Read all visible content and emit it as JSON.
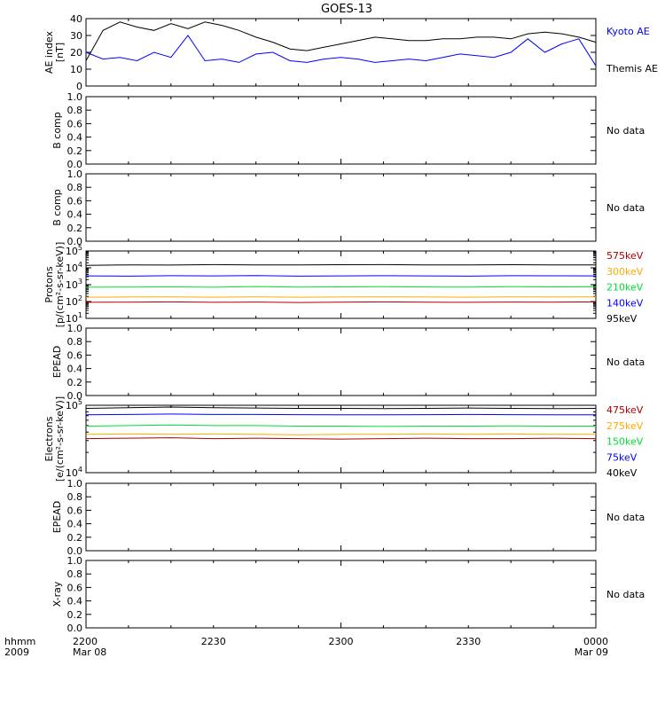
{
  "title": "GOES-13",
  "colors": {
    "black": "#000000",
    "blue": "#0000ff",
    "green": "#00dd33",
    "orange": "#ffaa00",
    "darkred": "#aa0000"
  },
  "time_axis": {
    "left_labels": [
      "hhmm",
      "2009"
    ],
    "ticks": [
      {
        "time": "2200",
        "date": "Mar 08"
      },
      {
        "time": "2230",
        "date": ""
      },
      {
        "time": "2300",
        "date": ""
      },
      {
        "time": "2330",
        "date": ""
      },
      {
        "time": "0000",
        "date": "Mar 09"
      }
    ]
  },
  "no_data_label": "No data",
  "chart_data": [
    {
      "type": "line",
      "ylabel": [
        "AE index",
        "[nT]"
      ],
      "ylim": [
        0,
        40
      ],
      "yticks": [
        "0",
        "10",
        "20",
        "30",
        "40"
      ],
      "x": [
        0,
        2,
        4,
        6,
        8,
        10,
        12,
        14,
        16,
        18,
        20,
        22,
        24,
        26,
        28,
        30,
        32,
        34,
        36,
        38,
        40,
        42,
        44,
        46,
        48,
        50,
        52,
        54,
        56,
        58,
        60
      ],
      "series": [
        {
          "name": "Kyoto AE",
          "color": "#0000ff",
          "values": [
            20,
            16,
            17,
            15,
            20,
            17,
            30,
            15,
            16,
            14,
            19,
            20,
            15,
            14,
            16,
            17,
            16,
            14,
            15,
            16,
            15,
            17,
            19,
            18,
            17,
            20,
            28,
            20,
            25,
            28,
            12
          ]
        },
        {
          "name": "Themis AE",
          "color": "#000000",
          "values": [
            15,
            33,
            38,
            35,
            33,
            37,
            34,
            38,
            36,
            33,
            29,
            26,
            22,
            21,
            23,
            25,
            27,
            29,
            28,
            27,
            27,
            28,
            28,
            29,
            29,
            28,
            31,
            32,
            31,
            29,
            26
          ]
        }
      ]
    },
    {
      "type": "line",
      "ylabel": [
        "B comp"
      ],
      "ylim": [
        0,
        1
      ],
      "yticks": [
        "0.0",
        "0.2",
        "0.4",
        "0.6",
        "0.8",
        "1.0"
      ],
      "no_data": true,
      "series": []
    },
    {
      "type": "line",
      "ylabel": [
        "B comp"
      ],
      "ylim": [
        0,
        1
      ],
      "yticks": [
        "0.0",
        "0.2",
        "0.4",
        "0.6",
        "0.8",
        "1.0"
      ],
      "no_data": true,
      "series": []
    },
    {
      "type": "line",
      "ylabel": [
        "Protons",
        "[p/(cm²-s-sr-keV)]"
      ],
      "log": true,
      "ylim": [
        10,
        100000
      ],
      "log_ticks": [
        {
          "base": "10",
          "exp": "5",
          "value": 100000
        },
        {
          "base": "10",
          "exp": "4",
          "value": 10000
        },
        {
          "base": "10",
          "exp": "3",
          "value": 1000
        },
        {
          "base": "10",
          "exp": "2",
          "value": 100
        },
        {
          "base": "10",
          "exp": "1",
          "value": 10
        }
      ],
      "x": [
        0,
        5,
        10,
        15,
        20,
        25,
        30,
        35,
        40,
        45,
        50,
        55,
        60
      ],
      "series": [
        {
          "name": "575keV",
          "color": "#aa0000",
          "values": [
            90,
            92,
            95,
            90,
            93,
            88,
            92,
            95,
            92,
            90,
            93,
            92,
            95
          ]
        },
        {
          "name": "300keV",
          "color": "#ffaa00",
          "values": [
            180,
            185,
            190,
            182,
            188,
            180,
            185,
            190,
            186,
            182,
            190,
            186,
            188
          ]
        },
        {
          "name": "210keV",
          "color": "#00dd33",
          "values": [
            700,
            720,
            740,
            700,
            780,
            720,
            740,
            760,
            730,
            710,
            760,
            740,
            750
          ]
        },
        {
          "name": "140keV",
          "color": "#0000ff",
          "values": [
            3300,
            3200,
            3400,
            3300,
            3500,
            3200,
            3300,
            3400,
            3300,
            3200,
            3400,
            3350,
            3300
          ]
        },
        {
          "name": "95keV",
          "color": "#000000",
          "values": [
            14000,
            15000,
            14500,
            15500,
            15000,
            14800,
            15200,
            15500,
            15000,
            14700,
            15300,
            15000,
            14800
          ]
        }
      ]
    },
    {
      "type": "line",
      "ylabel": [
        "EPEAD"
      ],
      "ylim": [
        0,
        1
      ],
      "yticks": [
        "0.0",
        "0.2",
        "0.4",
        "0.6",
        "0.8",
        "1.0"
      ],
      "no_data": true,
      "series": []
    },
    {
      "type": "line",
      "ylabel": [
        "Electrons",
        "[e/(cm²-s-sr-keV)]"
      ],
      "log": true,
      "ylim": [
        10000,
        100000
      ],
      "log_ticks": [
        {
          "base": "10",
          "exp": "5",
          "value": 100000
        },
        {
          "base": "10",
          "exp": "4",
          "value": 10000
        }
      ],
      "x": [
        0,
        5,
        10,
        15,
        20,
        25,
        30,
        35,
        40,
        45,
        50,
        55,
        60
      ],
      "series": [
        {
          "name": "475keV",
          "color": "#aa0000",
          "values": [
            32000,
            32500,
            33000,
            32000,
            32500,
            32000,
            31500,
            32000,
            32500,
            32000,
            32000,
            32500,
            32000
          ]
        },
        {
          "name": "275keV",
          "color": "#ffaa00",
          "values": [
            37000,
            37500,
            37000,
            37500,
            37000,
            36500,
            37000,
            37000,
            37500,
            37000,
            37500,
            37000,
            37000
          ]
        },
        {
          "name": "150keV",
          "color": "#00dd33",
          "values": [
            49000,
            50000,
            51000,
            50000,
            50000,
            49000,
            49000,
            48500,
            49000,
            49000,
            49500,
            49000,
            49000
          ]
        },
        {
          "name": "75keV",
          "color": "#0000ff",
          "values": [
            72000,
            73000,
            74000,
            73000,
            73000,
            72500,
            72000,
            72000,
            72500,
            73000,
            72500,
            72000,
            72000
          ]
        },
        {
          "name": "40keV",
          "color": "#000000",
          "values": [
            90000,
            92000,
            94000,
            92000,
            91000,
            90000,
            90000,
            89000,
            90000,
            91000,
            90000,
            89000,
            90000
          ]
        }
      ]
    },
    {
      "type": "line",
      "ylabel": [
        "EPEAD"
      ],
      "ylim": [
        0,
        1
      ],
      "yticks": [
        "0.0",
        "0.2",
        "0.4",
        "0.6",
        "0.8",
        "1.0"
      ],
      "no_data": true,
      "series": []
    },
    {
      "type": "line",
      "ylabel": [
        "X-ray"
      ],
      "ylim": [
        0,
        1
      ],
      "yticks": [
        "0.0",
        "0.2",
        "0.4",
        "0.6",
        "0.8",
        "1.0"
      ],
      "no_data": true,
      "series": []
    }
  ]
}
